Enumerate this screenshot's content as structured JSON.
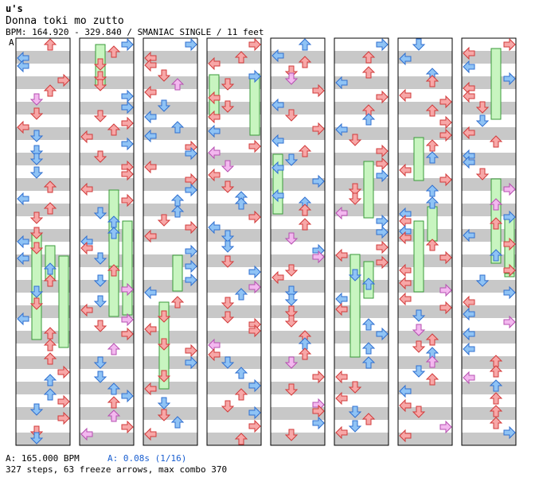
{
  "song": {
    "artist": "u's",
    "title": "Donna toki mo zutto",
    "info": "BPM: 164.920 - 329.840 / SMANIAC SINGLE / 11 feet",
    "section_mark": "A"
  },
  "footer": {
    "bpm": "A: 165.000 BPM",
    "offset": "A: 0.08s (1/16)",
    "stats": "327 steps, 63 freeze arrows, max combo 370"
  },
  "colors": {
    "stripe_gray": "#c8c8c8",
    "red_arrow": "#f7a7a7",
    "red_stroke": "#d23a3a",
    "blue_arrow": "#8fc3f5",
    "blue_stroke": "#2f6fd0",
    "pink_arrow": "#f3b8ef",
    "pink_stroke": "#b64fb0",
    "freeze_fill": "#c8f5c0",
    "freeze_stroke": "#3a9a3a"
  }
}
